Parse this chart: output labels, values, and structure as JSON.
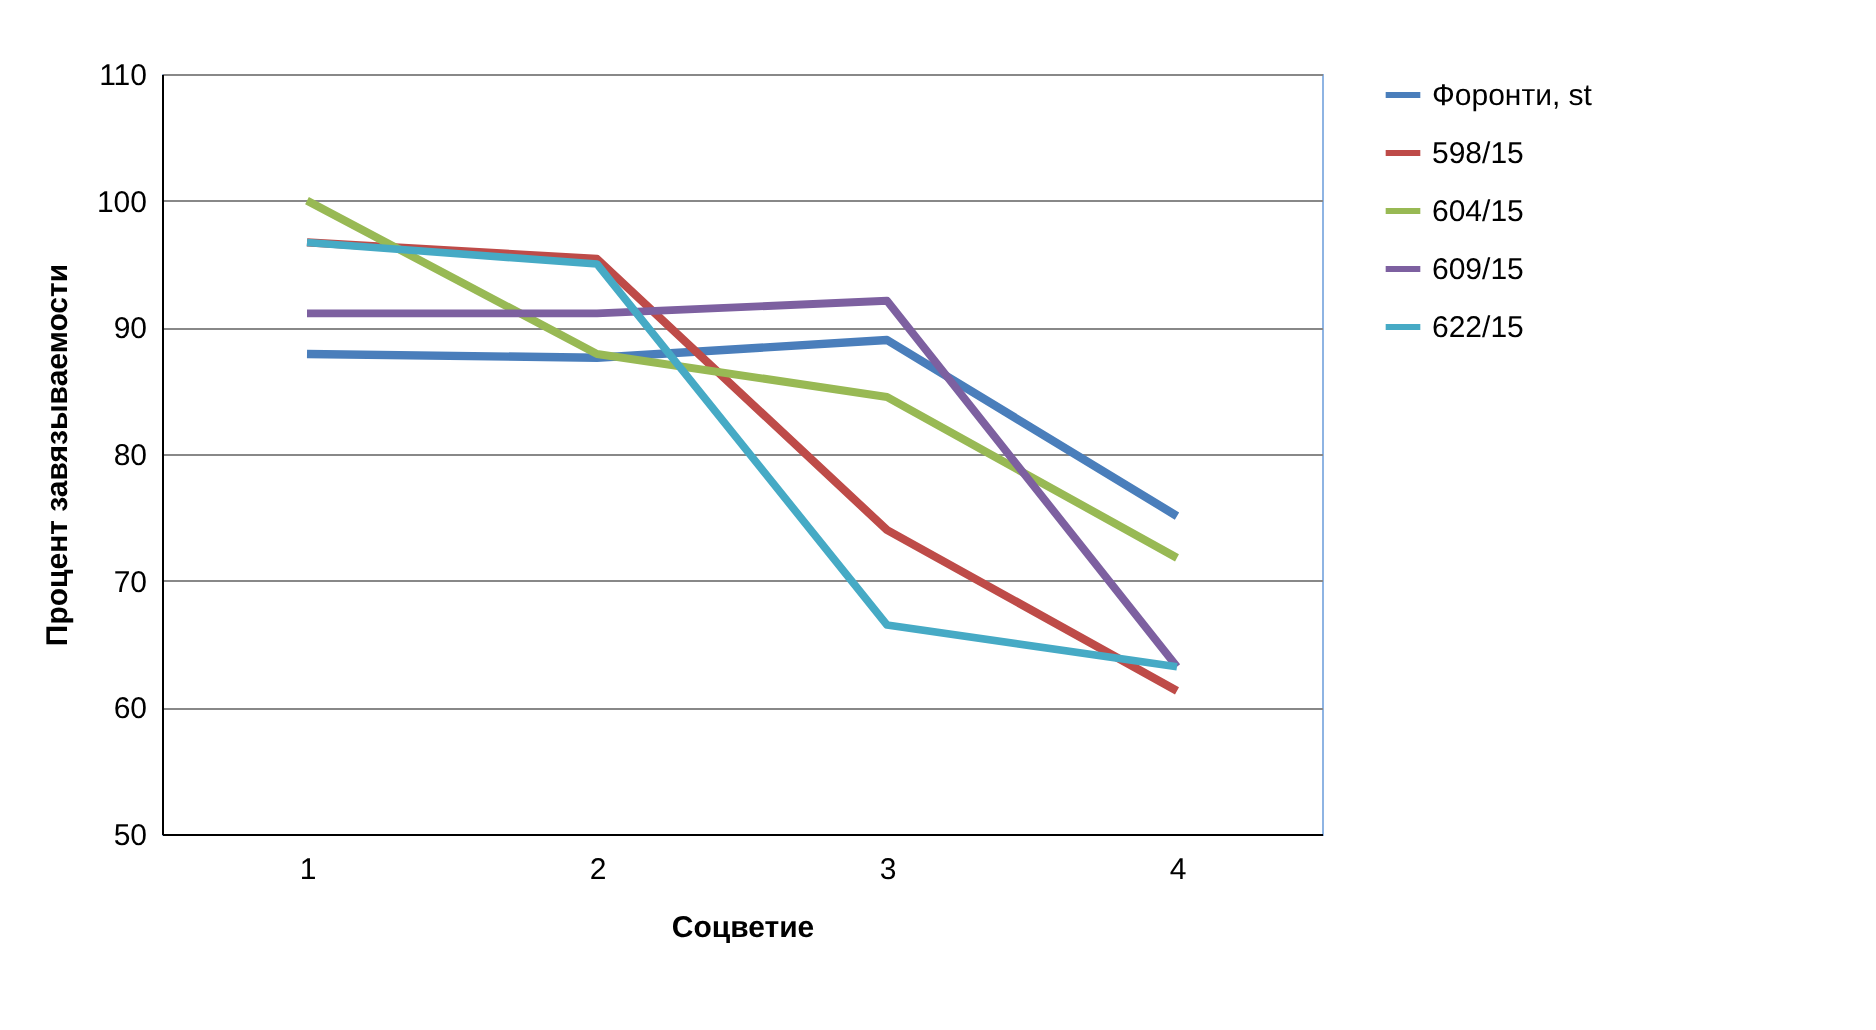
{
  "chart_data": {
    "type": "line",
    "xlabel": "Соцветие",
    "ylabel": "Процент завязываемости",
    "categories": [
      "1",
      "2",
      "3",
      "4"
    ],
    "ylim": [
      50,
      110
    ],
    "yticks": [
      50,
      60,
      70,
      80,
      90,
      100,
      110
    ],
    "grid": "y",
    "legend": "right",
    "marker": "none",
    "line_style": "solid",
    "series": [
      {
        "name": "Форонти, st",
        "color": "#4a7ebb",
        "values": [
          87.9,
          87.6,
          89,
          75.1
        ]
      },
      {
        "name": "598/15",
        "color": "#be4b48",
        "values": [
          96.7,
          95.4,
          74,
          61.3
        ]
      },
      {
        "name": "604/15",
        "color": "#98b954",
        "values": [
          100,
          87.9,
          84.5,
          71.8
        ]
      },
      {
        "name": "609/15",
        "color": "#7d60a0",
        "values": [
          91.1,
          91.1,
          92.1,
          63.2
        ]
      },
      {
        "name": "622/15",
        "color": "#46aac5",
        "values": [
          96.7,
          95,
          66.5,
          63.2
        ]
      }
    ]
  }
}
